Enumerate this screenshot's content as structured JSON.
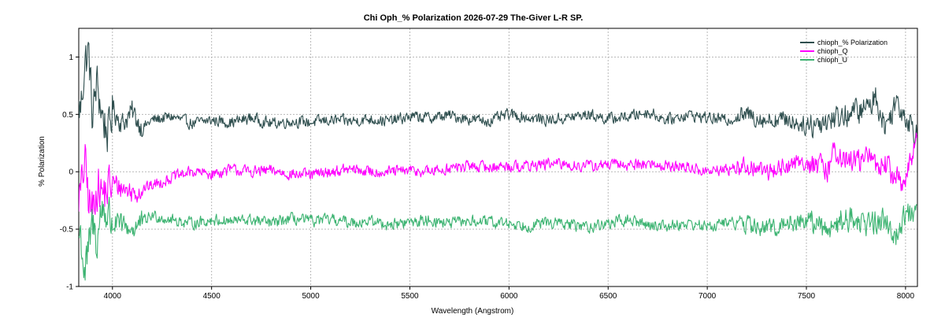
{
  "chart_data": {
    "type": "line",
    "title": "Chi Oph_% Polarization  2026-07-29  The-Giver  L-R  SP.",
    "xlabel": "Wavelength (Angstrom)",
    "ylabel": "% Polarization",
    "xlim": [
      3830,
      8060
    ],
    "ylim": [
      -1,
      1.25
    ],
    "x_ticks": [
      4000,
      4500,
      5000,
      5500,
      6000,
      6500,
      7000,
      7500,
      8000
    ],
    "x_tick_labels": [
      "4000",
      "4500",
      "5000",
      "5500",
      "6000",
      "6500",
      "7000",
      "7500",
      "8000"
    ],
    "y_ticks": [
      1,
      0.5,
      0,
      -0.5,
      -1
    ],
    "y_tick_labels": [
      "1",
      "0.5",
      "0",
      "-0.5",
      "-1"
    ],
    "grid": true,
    "legend_position": "top-right",
    "series": [
      {
        "name": "chioph_% Polarization",
        "color": "#2f4f4f",
        "points": [
          [
            3840,
            0.55
          ],
          [
            3860,
            0.95
          ],
          [
            3880,
            1.05
          ],
          [
            3900,
            0.45
          ],
          [
            3920,
            0.78
          ],
          [
            3950,
            0.48
          ],
          [
            3980,
            0.32
          ],
          [
            4000,
            0.55
          ],
          [
            4050,
            0.42
          ],
          [
            4100,
            0.52
          ],
          [
            4150,
            0.38
          ],
          [
            4200,
            0.45
          ],
          [
            4300,
            0.48
          ],
          [
            4400,
            0.42
          ],
          [
            4500,
            0.45
          ],
          [
            4600,
            0.43
          ],
          [
            4700,
            0.47
          ],
          [
            4800,
            0.42
          ],
          [
            4900,
            0.44
          ],
          [
            5000,
            0.43
          ],
          [
            5100,
            0.45
          ],
          [
            5200,
            0.44
          ],
          [
            5300,
            0.46
          ],
          [
            5400,
            0.44
          ],
          [
            5500,
            0.48
          ],
          [
            5600,
            0.47
          ],
          [
            5700,
            0.49
          ],
          [
            5800,
            0.46
          ],
          [
            5900,
            0.44
          ],
          [
            6000,
            0.5
          ],
          [
            6100,
            0.47
          ],
          [
            6200,
            0.45
          ],
          [
            6300,
            0.47
          ],
          [
            6400,
            0.5
          ],
          [
            6500,
            0.46
          ],
          [
            6600,
            0.48
          ],
          [
            6700,
            0.52
          ],
          [
            6800,
            0.45
          ],
          [
            6900,
            0.5
          ],
          [
            7000,
            0.47
          ],
          [
            7100,
            0.45
          ],
          [
            7200,
            0.5
          ],
          [
            7300,
            0.45
          ],
          [
            7400,
            0.46
          ],
          [
            7500,
            0.4
          ],
          [
            7600,
            0.45
          ],
          [
            7700,
            0.5
          ],
          [
            7800,
            0.55
          ],
          [
            7850,
            0.65
          ],
          [
            7900,
            0.38
          ],
          [
            7950,
            0.62
          ],
          [
            8000,
            0.5
          ],
          [
            8050,
            0.35
          ]
        ]
      },
      {
        "name": "chioph_Q",
        "color": "#ff00ff",
        "points": [
          [
            3840,
            -0.2
          ],
          [
            3860,
            0.1
          ],
          [
            3880,
            -0.25
          ],
          [
            3900,
            -0.35
          ],
          [
            3920,
            -0.1
          ],
          [
            3950,
            -0.2
          ],
          [
            4000,
            -0.1
          ],
          [
            4100,
            -0.18
          ],
          [
            4200,
            -0.12
          ],
          [
            4300,
            -0.05
          ],
          [
            4400,
            0.0
          ],
          [
            4500,
            -0.02
          ],
          [
            4600,
            0.02
          ],
          [
            4700,
            0.0
          ],
          [
            4800,
            0.01
          ],
          [
            4900,
            -0.02
          ],
          [
            5000,
            -0.03
          ],
          [
            5100,
            0.0
          ],
          [
            5200,
            0.02
          ],
          [
            5300,
            0.0
          ],
          [
            5400,
            0.0
          ],
          [
            5500,
            0.01
          ],
          [
            5600,
            0.0
          ],
          [
            5700,
            0.03
          ],
          [
            5800,
            0.05
          ],
          [
            5900,
            0.04
          ],
          [
            6000,
            0.05
          ],
          [
            6100,
            0.05
          ],
          [
            6200,
            0.07
          ],
          [
            6300,
            0.06
          ],
          [
            6400,
            0.05
          ],
          [
            6500,
            0.06
          ],
          [
            6600,
            0.06
          ],
          [
            6700,
            0.07
          ],
          [
            6800,
            0.05
          ],
          [
            6900,
            0.04
          ],
          [
            7000,
            0.0
          ],
          [
            7100,
            0.02
          ],
          [
            7200,
            0.05
          ],
          [
            7300,
            0.0
          ],
          [
            7400,
            0.05
          ],
          [
            7500,
            0.1
          ],
          [
            7600,
            0.0
          ],
          [
            7650,
            0.2
          ],
          [
            7700,
            0.08
          ],
          [
            7800,
            0.12
          ],
          [
            7900,
            0.05
          ],
          [
            7950,
            -0.05
          ],
          [
            8000,
            -0.1
          ],
          [
            8050,
            0.25
          ]
        ]
      },
      {
        "name": "chioph_U",
        "color": "#3cb371",
        "points": [
          [
            3840,
            -0.55
          ],
          [
            3860,
            -0.9
          ],
          [
            3880,
            -0.7
          ],
          [
            3900,
            -0.45
          ],
          [
            3920,
            -0.6
          ],
          [
            3950,
            -0.3
          ],
          [
            4000,
            -0.45
          ],
          [
            4100,
            -0.5
          ],
          [
            4200,
            -0.38
          ],
          [
            4300,
            -0.42
          ],
          [
            4400,
            -0.45
          ],
          [
            4500,
            -0.42
          ],
          [
            4600,
            -0.43
          ],
          [
            4700,
            -0.42
          ],
          [
            4800,
            -0.45
          ],
          [
            4900,
            -0.41
          ],
          [
            5000,
            -0.43
          ],
          [
            5100,
            -0.42
          ],
          [
            5200,
            -0.44
          ],
          [
            5300,
            -0.43
          ],
          [
            5400,
            -0.46
          ],
          [
            5500,
            -0.44
          ],
          [
            5600,
            -0.42
          ],
          [
            5700,
            -0.45
          ],
          [
            5800,
            -0.43
          ],
          [
            5900,
            -0.44
          ],
          [
            6000,
            -0.45
          ],
          [
            6100,
            -0.47
          ],
          [
            6200,
            -0.44
          ],
          [
            6300,
            -0.46
          ],
          [
            6400,
            -0.48
          ],
          [
            6500,
            -0.45
          ],
          [
            6600,
            -0.42
          ],
          [
            6700,
            -0.46
          ],
          [
            6800,
            -0.47
          ],
          [
            6900,
            -0.45
          ],
          [
            7000,
            -0.48
          ],
          [
            7100,
            -0.44
          ],
          [
            7200,
            -0.46
          ],
          [
            7300,
            -0.5
          ],
          [
            7400,
            -0.45
          ],
          [
            7500,
            -0.42
          ],
          [
            7600,
            -0.5
          ],
          [
            7700,
            -0.4
          ],
          [
            7800,
            -0.45
          ],
          [
            7900,
            -0.42
          ],
          [
            7950,
            -0.55
          ],
          [
            8000,
            -0.35
          ],
          [
            8050,
            -0.4
          ]
        ]
      }
    ]
  }
}
